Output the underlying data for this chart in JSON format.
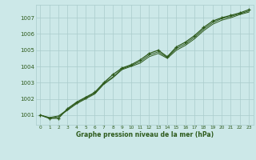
{
  "xlabel": "Graphe pression niveau de la mer (hPa)",
  "ylabel": "",
  "bg_color": "#cce8e8",
  "grid_color": "#aacccc",
  "line_color": "#2d5a1b",
  "marker_color": "#2d5a1b",
  "text_color": "#2d5a1b",
  "xlim": [
    -0.5,
    23.5
  ],
  "ylim": [
    1000.4,
    1007.8
  ],
  "yticks": [
    1001,
    1002,
    1003,
    1004,
    1005,
    1006,
    1007
  ],
  "xticks": [
    0,
    1,
    2,
    3,
    4,
    5,
    6,
    7,
    8,
    9,
    10,
    11,
    12,
    13,
    14,
    15,
    16,
    17,
    18,
    19,
    20,
    21,
    22,
    23
  ],
  "series": [
    [
      1001.0,
      1000.8,
      1000.8,
      1001.4,
      1001.8,
      1002.1,
      1002.4,
      1003.0,
      1003.5,
      1003.9,
      1004.1,
      1004.4,
      1004.8,
      1005.0,
      1004.6,
      1005.2,
      1005.5,
      1005.9,
      1006.4,
      1006.8,
      1007.0,
      1007.15,
      1007.3,
      1007.5
    ],
    [
      1001.0,
      1000.8,
      1000.9,
      1001.3,
      1001.7,
      1002.0,
      1002.3,
      1002.9,
      1003.3,
      1003.8,
      1004.0,
      1004.2,
      1004.6,
      1004.8,
      1004.5,
      1005.0,
      1005.3,
      1005.7,
      1006.2,
      1006.6,
      1006.85,
      1007.0,
      1007.2,
      1007.35
    ],
    [
      1001.0,
      1000.85,
      1000.95,
      1001.35,
      1001.75,
      1002.05,
      1002.35,
      1002.95,
      1003.35,
      1003.85,
      1004.05,
      1004.3,
      1004.7,
      1004.9,
      1004.55,
      1005.1,
      1005.4,
      1005.8,
      1006.3,
      1006.7,
      1006.95,
      1007.08,
      1007.25,
      1007.42
    ]
  ]
}
